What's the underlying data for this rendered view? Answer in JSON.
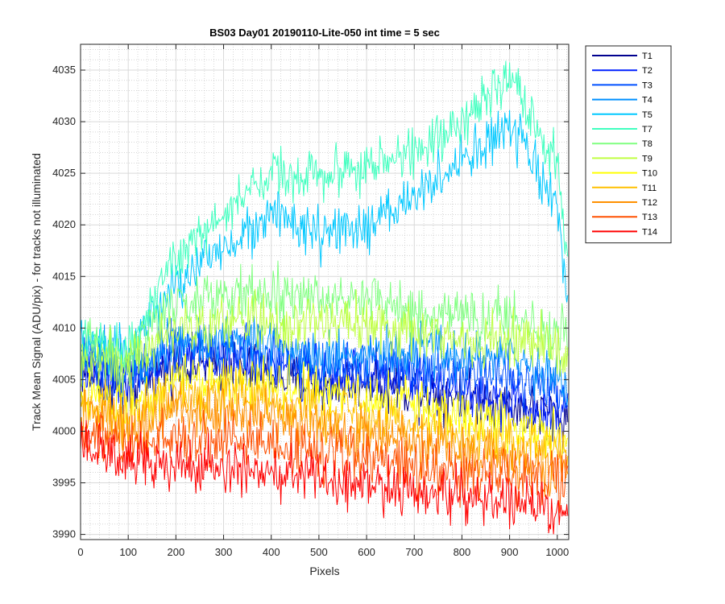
{
  "chart_data": {
    "type": "line",
    "title": "BS03 Day01 20190110-Lite-050 int time = 5 sec",
    "xlabel": "Pixels",
    "ylabel": "Track Mean Signal (ADU/pix) - for tracks not illuminated",
    "xlim": [
      0,
      1024
    ],
    "ylim": [
      3989.5,
      4037.5
    ],
    "x_ticks": [
      0,
      100,
      200,
      300,
      400,
      500,
      600,
      700,
      800,
      900,
      1000
    ],
    "y_ticks": [
      3990,
      3995,
      4000,
      4005,
      4010,
      4015,
      4020,
      4025,
      4030,
      4035
    ],
    "grid": true,
    "minor_grid": true,
    "legend_position": "outside-right",
    "x_anchors": [
      0,
      100,
      200,
      300,
      400,
      500,
      600,
      700,
      800,
      900,
      1000,
      1024
    ],
    "series": [
      {
        "name": "T1",
        "color": "#00008F",
        "noise": 1.6,
        "values": [
          4006,
          4004,
          4006.5,
          4006.5,
          4005.5,
          4004.5,
          4005,
          4004,
          4003.5,
          4002.5,
          4001.5,
          4001
        ]
      },
      {
        "name": "T2",
        "color": "#0020FF",
        "noise": 1.6,
        "values": [
          4006.5,
          4004.5,
          4007.5,
          4007.5,
          4006.5,
          4005.5,
          4005.5,
          4005,
          4004,
          4003,
          4002,
          4001.5
        ]
      },
      {
        "name": "T3",
        "color": "#0050FF",
        "noise": 1.6,
        "values": [
          4007,
          4005.5,
          4008,
          4008,
          4007.5,
          4006.5,
          4006.5,
          4006.5,
          4006,
          4005.5,
          4004,
          4003
        ]
      },
      {
        "name": "T4",
        "color": "#0090FF",
        "noise": 1.6,
        "values": [
          4008,
          4006.5,
          4008.5,
          4009,
          4008.5,
          4007.5,
          4007.5,
          4007.5,
          4007.5,
          4007,
          4005.5,
          4004
        ]
      },
      {
        "name": "T5",
        "color": "#00C8FF",
        "noise": 1.5,
        "values": [
          4008.5,
          4008,
          4014,
          4018,
          4021,
          4019,
          4019.5,
          4023,
          4026,
          4029.5,
          4022,
          4011
        ]
      },
      {
        "name": "T7",
        "color": "#40FFBF",
        "noise": 1.5,
        "values": [
          4008.5,
          4008,
          4017,
          4021,
          4025,
          4025,
          4025.5,
          4027,
          4030,
          4034,
          4026,
          4015
        ]
      },
      {
        "name": "T8",
        "color": "#80FF80",
        "noise": 1.6,
        "values": [
          4008,
          4007.5,
          4012.5,
          4013,
          4013,
          4013,
          4013,
          4011.5,
          4011,
          4011,
          4009.5,
          4009
        ]
      },
      {
        "name": "T9",
        "color": "#BFFF40",
        "noise": 1.6,
        "values": [
          4007,
          4006.5,
          4010,
          4010.5,
          4010.5,
          4010.5,
          4010.5,
          4009.5,
          4009,
          4009,
          4008,
          4007.5
        ]
      },
      {
        "name": "T10",
        "color": "#FFFF00",
        "noise": 1.6,
        "values": [
          4004,
          4002.5,
          4005,
          4005,
          4004.5,
          4003.5,
          4003.5,
          4002.5,
          4001.5,
          4000.5,
          3999.5,
          3999
        ]
      },
      {
        "name": "T11",
        "color": "#FFC000",
        "noise": 1.6,
        "values": [
          4002.5,
          4001,
          4003.5,
          4003.5,
          4003,
          4002,
          4001.5,
          4000.5,
          3999.5,
          3999,
          3998,
          3997.5
        ]
      },
      {
        "name": "T12",
        "color": "#FF9000",
        "noise": 1.6,
        "values": [
          4001.5,
          4000,
          4002,
          4002,
          4001.5,
          4000.5,
          4000,
          3999,
          3998,
          3997.5,
          3996.5,
          3996
        ]
      },
      {
        "name": "T13",
        "color": "#FF5000",
        "noise": 1.6,
        "values": [
          4000,
          3998.5,
          3999.5,
          3999.5,
          3999,
          3998,
          3997.5,
          3996.5,
          3996,
          3995.5,
          3995,
          3994.5
        ]
      },
      {
        "name": "T14",
        "color": "#FF0000",
        "noise": 1.6,
        "values": [
          3998.5,
          3997,
          3996.5,
          3996.5,
          3996,
          3995.5,
          3995,
          3994,
          3993.5,
          3993,
          3992.5,
          3992.5
        ]
      }
    ]
  }
}
